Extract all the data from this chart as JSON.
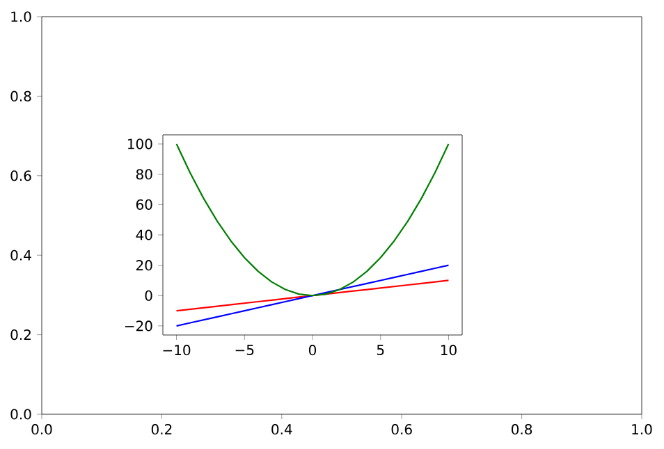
{
  "chart_data": [
    {
      "type": "line",
      "xlim": [
        0.0,
        1.0
      ],
      "ylim": [
        0.0,
        1.0
      ],
      "xticks": [
        {
          "value": 0,
          "label": "0.0"
        },
        0.2,
        0.4,
        0.6,
        0.8,
        {
          "value": 1,
          "label": "1.0"
        }
      ],
      "yticks": [
        {
          "value": 0,
          "label": "0.0"
        },
        0.2,
        0.4,
        0.6,
        0.8,
        {
          "value": 1,
          "label": "1.0"
        }
      ],
      "grid": false
    },
    {
      "type": "line",
      "xlim": [
        -11,
        11
      ],
      "ylim": [
        -26,
        106
      ],
      "xticks": [
        {
          "value": -10,
          "label": "−10"
        },
        {
          "value": -5,
          "label": "−5"
        },
        0,
        5,
        10
      ],
      "yticks": [
        {
          "value": -20,
          "label": "−20"
        },
        0,
        20,
        40,
        60,
        80,
        100
      ],
      "grid": false,
      "x": [
        -10,
        -9,
        -8,
        -7,
        -6,
        -5,
        -4,
        -3,
        -2,
        -1,
        0,
        1,
        2,
        3,
        4,
        5,
        6,
        7,
        8,
        9,
        10
      ],
      "series": [
        {
          "color": "#ff0000",
          "values": [
            -10,
            -9,
            -8,
            -7,
            -6,
            -5,
            -4,
            -3,
            -2,
            -1,
            0,
            1,
            2,
            3,
            4,
            5,
            6,
            7,
            8,
            9,
            10
          ]
        },
        {
          "color": "#0000ff",
          "values": [
            -20,
            -18,
            -16,
            -14,
            -12,
            -10,
            -8,
            -6,
            -4,
            -2,
            0,
            2,
            4,
            6,
            8,
            10,
            12,
            14,
            16,
            18,
            20
          ]
        },
        {
          "color": "#008000",
          "values": [
            100,
            81,
            64,
            49,
            36,
            25,
            16,
            9,
            4,
            1,
            0,
            1,
            4,
            9,
            16,
            25,
            36,
            49,
            64,
            81,
            100
          ]
        }
      ]
    }
  ]
}
